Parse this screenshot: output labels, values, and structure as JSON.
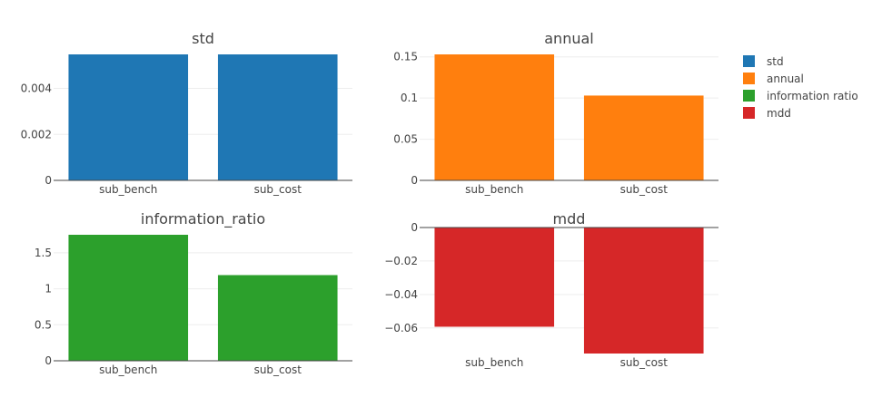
{
  "chart_data": [
    {
      "type": "bar",
      "title": "std",
      "categories": [
        "sub_bench",
        "sub_cost"
      ],
      "values": [
        0.00548,
        0.00548
      ],
      "ylim": [
        0,
        0.00548
      ],
      "yticks": [
        0,
        0.002,
        0.004
      ],
      "ytick_labels": [
        "0",
        "0.002",
        "0.004"
      ],
      "color": "#1f77b4"
    },
    {
      "type": "bar",
      "title": "annual",
      "categories": [
        "sub_bench",
        "sub_cost"
      ],
      "values": [
        0.153,
        0.103
      ],
      "ylim": [
        0,
        0.153
      ],
      "yticks": [
        0,
        0.05,
        0.1,
        0.15
      ],
      "ytick_labels": [
        "0",
        "0.05",
        "0.1",
        "0.15"
      ],
      "color": "#ff7f0e"
    },
    {
      "type": "bar",
      "title": "information_ratio",
      "categories": [
        "sub_bench",
        "sub_cost"
      ],
      "values": [
        1.75,
        1.19
      ],
      "ylim": [
        0,
        1.75
      ],
      "yticks": [
        0,
        0.5,
        1,
        1.5
      ],
      "ytick_labels": [
        "0",
        "0.5",
        "1",
        "1.5"
      ],
      "color": "#2ca02c"
    },
    {
      "type": "bar",
      "title": "mdd",
      "categories": [
        "sub_bench",
        "sub_cost"
      ],
      "values": [
        -0.0593,
        -0.0753
      ],
      "ylim": [
        -0.0753,
        0
      ],
      "yticks": [
        0,
        -0.02,
        -0.04,
        -0.06
      ],
      "ytick_labels": [
        "0",
        "−0.02",
        "−0.04",
        "−0.06"
      ],
      "color": "#d62728"
    }
  ],
  "legend": {
    "placement": "top-right",
    "items": [
      {
        "label": "std",
        "color": "#1f77b4"
      },
      {
        "label": "annual",
        "color": "#ff7f0e"
      },
      {
        "label": "information ratio",
        "color": "#2ca02c"
      },
      {
        "label": "mdd",
        "color": "#d62728"
      }
    ]
  }
}
